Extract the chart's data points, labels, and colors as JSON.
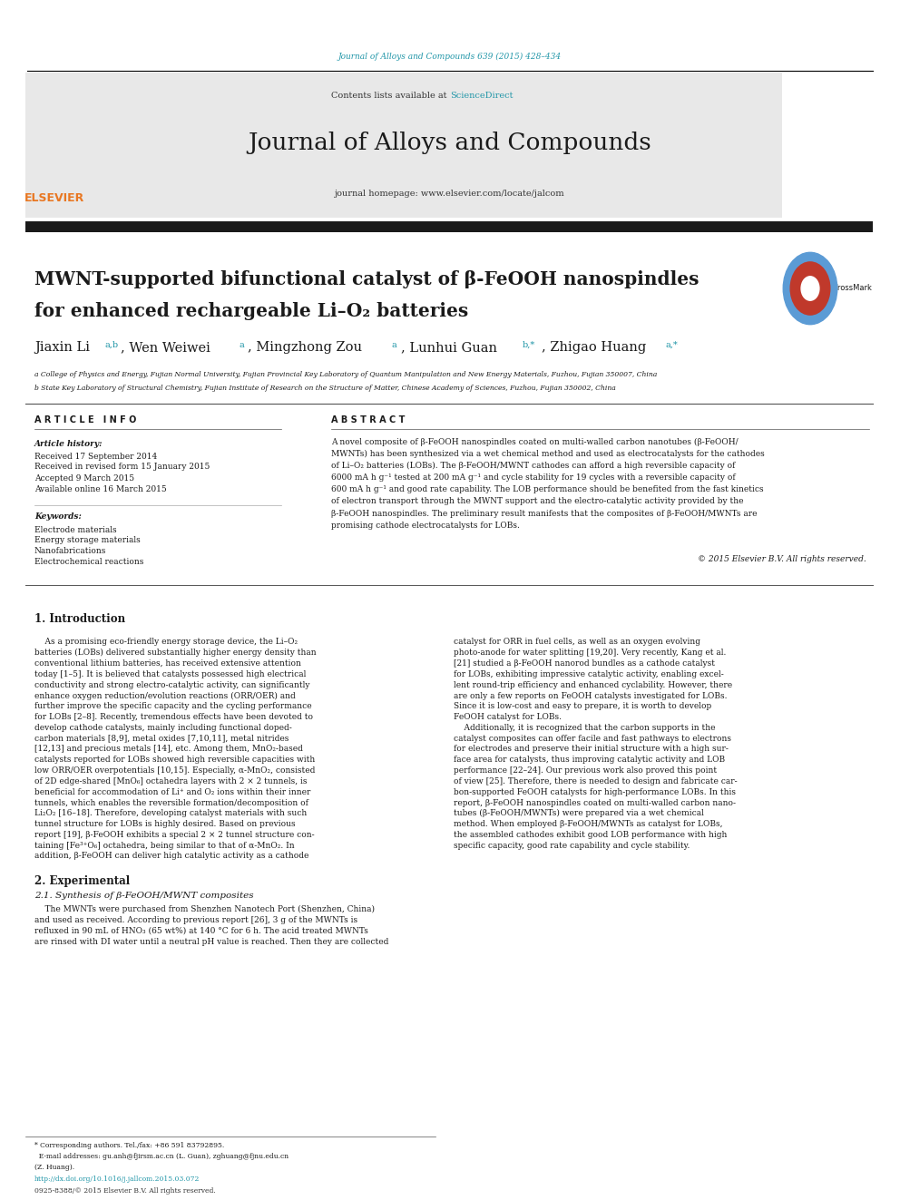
{
  "page_width": 9.92,
  "page_height": 13.23,
  "background_color": "#ffffff",
  "journal_ref_color": "#2196a8",
  "journal_ref_text": "Journal of Alloys and Compounds 639 (2015) 428–434",
  "header_bg_color": "#e8e8e8",
  "journal_name": "Journal of Alloys and Compounds",
  "contents_text": "Contents lists available at ",
  "sciencedirect_text": "ScienceDirect",
  "sciencedirect_color": "#2196a8",
  "homepage_text": "journal homepage: www.elsevier.com/locate/jalcom",
  "elsevier_color": "#e87722",
  "black_bar_color": "#1a1a1a",
  "title_line1": "MWNT-supported bifunctional catalyst of β-FeOOH nanospindles",
  "title_line2": "for enhanced rechargeable Li–O₂ batteries",
  "affil_a": "a College of Physics and Energy, Fujian Normal University, Fujian Provincial Key Laboratory of Quantum Manipulation and New Energy Materials, Fuzhou, Fujian 350007, China",
  "affil_b": "b State Key Laboratory of Structural Chemistry, Fujian Institute of Research on the Structure of Matter, Chinese Academy of Sciences, Fuzhou, Fujian 350002, China",
  "article_info_label": "A R T I C L E   I N F O",
  "abstract_label": "A B S T R A C T",
  "article_history_label": "Article history:",
  "received1": "Received 17 September 2014",
  "received2": "Received in revised form 15 January 2015",
  "accepted": "Accepted 9 March 2015",
  "available": "Available online 16 March 2015",
  "keywords_label": "Keywords:",
  "kw1": "Electrode materials",
  "kw2": "Energy storage materials",
  "kw3": "Nanofabrications",
  "kw4": "Electrochemical reactions",
  "copyright_text": "© 2015 Elsevier B.V. All rights reserved.",
  "intro_heading": "1. Introduction",
  "section2_heading": "2. Experimental",
  "section21_heading": "2.1. Synthesis of β-FeOOH/MWNT composites",
  "doi_text": "http://dx.doi.org/10.1016/j.jallcom.2015.03.072",
  "issn_text": "0925-8388/© 2015 Elsevier B.V. All rights reserved.",
  "abstract_lines": [
    "A novel composite of β-FeOOH nanospindles coated on multi-walled carbon nanotubes (β-FeOOH/",
    "MWNTs) has been synthesized via a wet chemical method and used as electrocatalysts for the cathodes",
    "of Li–O₂ batteries (LOBs). The β-FeOOH/MWNT cathodes can afford a high reversible capacity of",
    "6000 mA h g⁻¹ tested at 200 mA g⁻¹ and cycle stability for 19 cycles with a reversible capacity of",
    "600 mA h g⁻¹ and good rate capability. The LOB performance should be benefited from the fast kinetics",
    "of electron transport through the MWNT support and the electro-catalytic activity provided by the",
    "β-FeOOH nanospindles. The preliminary result manifests that the composites of β-FeOOH/MWNTs are",
    "promising cathode electrocatalysts for LOBs."
  ],
  "col1_lines": [
    "    As a promising eco-friendly energy storage device, the Li–O₂",
    "batteries (LOBs) delivered substantially higher energy density than",
    "conventional lithium batteries, has received extensive attention",
    "today [1–5]. It is believed that catalysts possessed high electrical",
    "conductivity and strong electro-catalytic activity, can significantly",
    "enhance oxygen reduction/evolution reactions (ORR/OER) and",
    "further improve the specific capacity and the cycling performance",
    "for LOBs [2–8]. Recently, tremendous effects have been devoted to",
    "develop cathode catalysts, mainly including functional doped-",
    "carbon materials [8,9], metal oxides [7,10,11], metal nitrides",
    "[12,13] and precious metals [14], etc. Among them, MnO₂-based",
    "catalysts reported for LOBs showed high reversible capacities with",
    "low ORR/OER overpotentials [10,15]. Especially, α-MnO₂, consisted",
    "of 2D edge-shared [MnO₆] octahedra layers with 2 × 2 tunnels, is",
    "beneficial for accommodation of Li⁺ and O₂ ions within their inner",
    "tunnels, which enables the reversible formation/decomposition of",
    "Li₂O₂ [16–18]. Therefore, developing catalyst materials with such",
    "tunnel structure for LOBs is highly desired. Based on previous",
    "report [19], β-FeOOH exhibits a special 2 × 2 tunnel structure con-",
    "taining [Fe³⁺O₆] octahedra, being similar to that of α-MnO₂. In",
    "addition, β-FeOOH can deliver high catalytic activity as a cathode"
  ],
  "col2_lines": [
    "catalyst for ORR in fuel cells, as well as an oxygen evolving",
    "photo-anode for water splitting [19,20]. Very recently, Kang et al.",
    "[21] studied a β-FeOOH nanorod bundles as a cathode catalyst",
    "for LOBs, exhibiting impressive catalytic activity, enabling excel-",
    "lent round-trip efficiency and enhanced cyclability. However, there",
    "are only a few reports on FeOOH catalysts investigated for LOBs.",
    "Since it is low-cost and easy to prepare, it is worth to develop",
    "FeOOH catalyst for LOBs.",
    "    Additionally, it is recognized that the carbon supports in the",
    "catalyst composites can offer facile and fast pathways to electrons",
    "for electrodes and preserve their initial structure with a high sur-",
    "face area for catalysts, thus improving catalytic activity and LOB",
    "performance [22–24]. Our previous work also proved this point",
    "of view [25]. Therefore, there is needed to design and fabricate car-",
    "bon-supported FeOOH catalysts for high-performance LOBs. In this",
    "report, β-FeOOH nanospindles coated on multi-walled carbon nano-",
    "tubes (β-FeOOH/MWNTs) were prepared via a wet chemical",
    "method. When employed β-FeOOH/MWNTs as catalyst for LOBs,",
    "the assembled cathodes exhibit good LOB performance with high",
    "specific capacity, good rate capability and cycle stability."
  ],
  "sec21_lines": [
    "    The MWNTs were purchased from Shenzhen Nanotech Port (Shenzhen, China)",
    "and used as received. According to previous report [26], 3 g of the MWNTs is",
    "refluxed in 90 mL of HNO₃ (65 wt%) at 140 °C for 6 h. The acid treated MWNTs",
    "are rinsed with DI water until a neutral pH value is reached. Then they are collected"
  ],
  "footer_lines": [
    "* Corresponding authors. Tel./fax: +86 591 83792895.",
    "  E-mail addresses: gu.anh@fjirsm.ac.cn (L. Guan), zghuang@fjnu.edu.cn",
    "(Z. Huang)."
  ]
}
